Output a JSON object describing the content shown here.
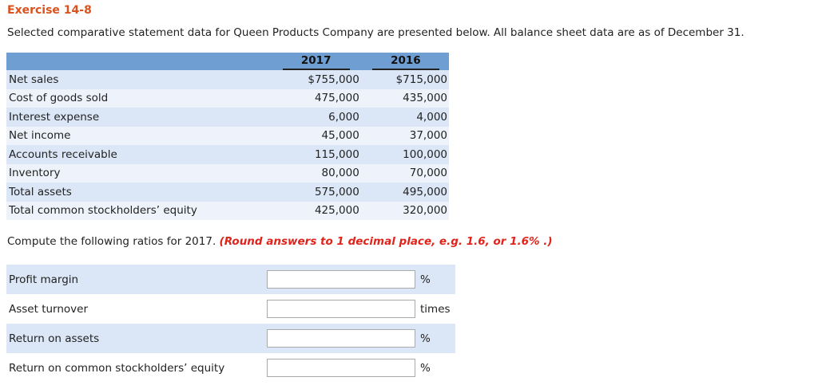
{
  "title": "Exercise 14-8",
  "intro": "Selected comparative statement data for Queen Products Company are presented below. All balance sheet data are as of December 31.",
  "table": {
    "headers": [
      "2017",
      "2016"
    ],
    "rows": [
      {
        "label": "Net sales",
        "v2017": "$755,000",
        "v2016": "$715,000"
      },
      {
        "label": "Cost of goods sold",
        "v2017": "475,000",
        "v2016": "435,000"
      },
      {
        "label": "Interest expense",
        "v2017": "6,000",
        "v2016": "4,000"
      },
      {
        "label": "Net income",
        "v2017": "45,000",
        "v2016": "37,000"
      },
      {
        "label": "Accounts receivable",
        "v2017": "115,000",
        "v2016": "100,000"
      },
      {
        "label": "Inventory",
        "v2017": "80,000",
        "v2016": "70,000"
      },
      {
        "label": "Total assets",
        "v2017": "575,000",
        "v2016": "495,000"
      },
      {
        "label": "Total common stockholders’ equity",
        "v2017": "425,000",
        "v2016": "320,000"
      }
    ]
  },
  "instruction": {
    "text": "Compute the following ratios for 2017. ",
    "note": "(Round answers to 1 decimal place, e.g. 1.6, or 1.6% .)"
  },
  "ratios": [
    {
      "label": "Profit margin",
      "value": "",
      "unit": "%"
    },
    {
      "label": "Asset turnover",
      "value": "",
      "unit": "times"
    },
    {
      "label": "Return on assets",
      "value": "",
      "unit": "%"
    },
    {
      "label": "Return on common stockholders’ equity",
      "value": "",
      "unit": "%"
    }
  ]
}
